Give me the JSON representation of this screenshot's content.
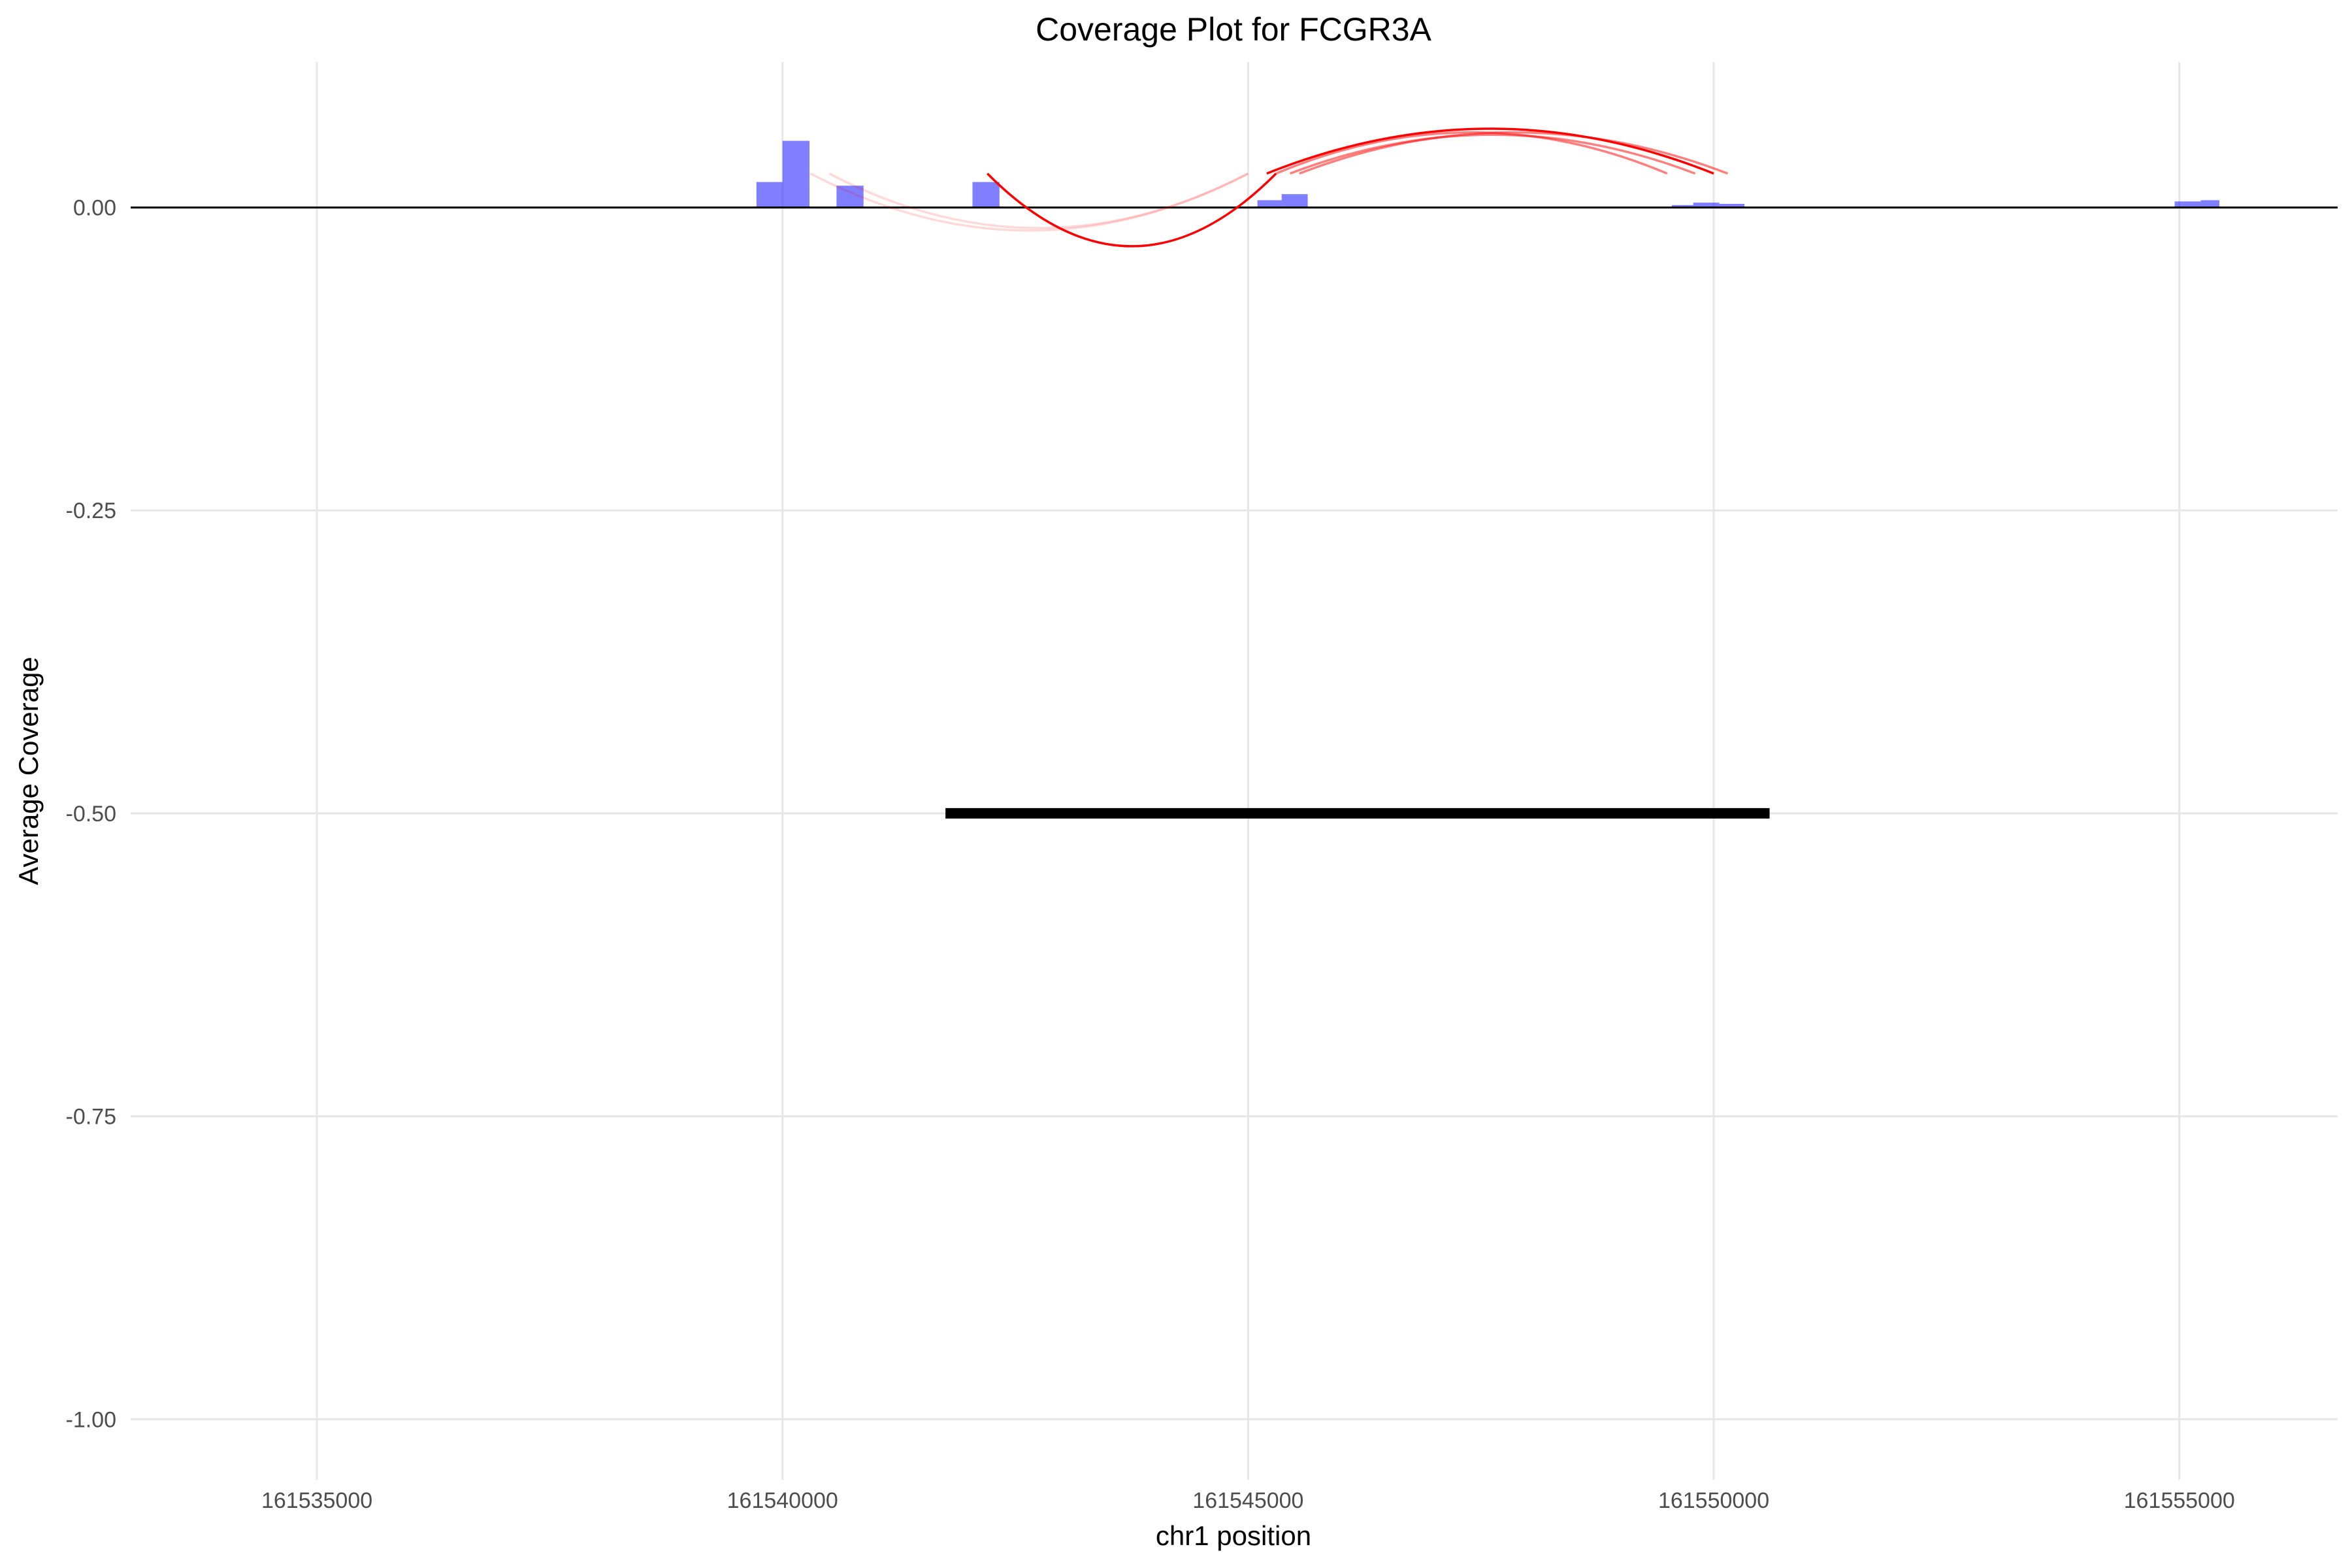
{
  "chart_data": {
    "type": "bar",
    "title": "Coverage Plot for FCGR3A",
    "xlabel": "chr1 position",
    "ylabel": "Average Coverage",
    "xlim": [
      161533000,
      161556700
    ],
    "ylim": [
      -1.05,
      0.12
    ],
    "x_ticks": [
      161535000,
      161540000,
      161545000,
      161550000,
      161555000
    ],
    "x_tick_labels": [
      "161535000",
      "161540000",
      "161545000",
      "161550000",
      "161555000"
    ],
    "y_ticks": [
      0.0,
      -0.25,
      -0.5,
      -0.75,
      -1.0
    ],
    "y_tick_labels": [
      "0.00",
      "-0.25",
      "-0.50",
      "-0.75",
      "-1.00"
    ],
    "grid": true,
    "coverage_bars": [
      {
        "start": 161539720,
        "end": 161540000,
        "value": 0.021
      },
      {
        "start": 161540000,
        "end": 161540290,
        "value": 0.055
      },
      {
        "start": 161540580,
        "end": 161540870,
        "value": 0.018
      },
      {
        "start": 161542040,
        "end": 161542330,
        "value": 0.021
      },
      {
        "start": 161545100,
        "end": 161545360,
        "value": 0.006
      },
      {
        "start": 161545360,
        "end": 161545640,
        "value": 0.011
      },
      {
        "start": 161549550,
        "end": 161549780,
        "value": 0.002
      },
      {
        "start": 161549780,
        "end": 161550060,
        "value": 0.004
      },
      {
        "start": 161550060,
        "end": 161550330,
        "value": 0.003
      },
      {
        "start": 161554950,
        "end": 161555230,
        "value": 0.005
      },
      {
        "start": 161555230,
        "end": 161555430,
        "value": 0.006
      }
    ],
    "splice_arcs": [
      {
        "start": 161540300,
        "end": 161545000,
        "height": -0.019,
        "opacity": 0.15
      },
      {
        "start": 161540500,
        "end": 161545000,
        "height": -0.017,
        "opacity": 0.15
      },
      {
        "start": 161542200,
        "end": 161545300,
        "height": -0.032,
        "opacity": 1.0
      },
      {
        "start": 161545300,
        "end": 161549500,
        "height": 0.062,
        "opacity": 0.5
      },
      {
        "start": 161545450,
        "end": 161549800,
        "height": 0.06,
        "opacity": 0.5
      },
      {
        "start": 161545550,
        "end": 161550150,
        "height": 0.062,
        "opacity": 0.5
      },
      {
        "start": 161545200,
        "end": 161550000,
        "height": 0.065,
        "opacity": 1.0
      }
    ],
    "gene_segment": {
      "start": 161541750,
      "end": 161550600,
      "y": -0.5
    },
    "colors": {
      "bars": "#0000ff",
      "arcs": "#ff0000",
      "gene": "#000000",
      "grid": "#e6e6e6",
      "zero_line": "#000000"
    }
  }
}
